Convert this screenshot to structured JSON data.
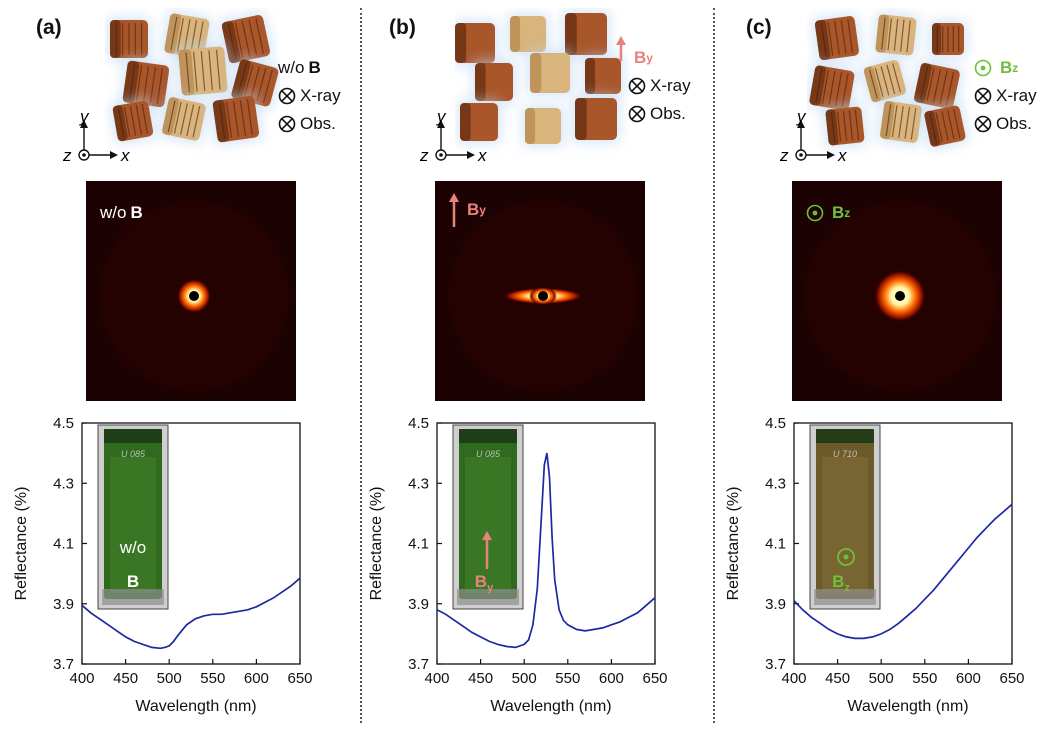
{
  "panels": [
    {
      "label": "(a)",
      "field_text": "w/o",
      "field_sym": "B",
      "field_sub": "",
      "field_color": "#111111",
      "field_marker": "none",
      "legend_rows": [
        "X-ray",
        "Obs."
      ],
      "axes": {
        "y": "y",
        "z": "z",
        "x": "x"
      },
      "saxs_text": "w/o",
      "saxs_sym": "B",
      "saxs_sub": "",
      "saxs_color": "#ffffff",
      "saxs_pattern": "small-ring",
      "vial_text_line1": "w/o",
      "vial_text_line2": "B",
      "vial_sub": "",
      "vial_text_color": "#ffffff",
      "vial_marker": "none",
      "vial_tint": "green"
    },
    {
      "label": "(b)",
      "field_text": "",
      "field_sym": "B",
      "field_sub": "y",
      "field_color": "#e8827a",
      "field_marker": "arrow-up",
      "legend_rows": [
        "X-ray",
        "Obs."
      ],
      "axes": {
        "y": "y",
        "z": "z",
        "x": "x"
      },
      "saxs_text": "",
      "saxs_sym": "B",
      "saxs_sub": "y",
      "saxs_color": "#e8827a",
      "saxs_pattern": "streak",
      "vial_text_line1": "",
      "vial_text_line2": "B",
      "vial_sub": "y",
      "vial_text_color": "#e8827a",
      "vial_marker": "arrow-up",
      "vial_tint": "green"
    },
    {
      "label": "(c)",
      "field_text": "",
      "field_sym": "B",
      "field_sub": "z",
      "field_color": "#6fbf3a",
      "field_marker": "odot",
      "legend_rows": [
        "X-ray",
        "Obs."
      ],
      "axes": {
        "y": "y",
        "z": "z",
        "x": "x"
      },
      "saxs_text": "",
      "saxs_sym": "B",
      "saxs_sub": "z",
      "saxs_color": "#6fbf3a",
      "saxs_pattern": "large-ring",
      "vial_text_line1": "",
      "vial_text_line2": "B",
      "vial_sub": "z",
      "vial_text_color": "#6fbf3a",
      "vial_marker": "odot",
      "vial_tint": "amber"
    }
  ],
  "vial_labels": [
    "U 085",
    "U 085",
    "U 710"
  ],
  "chart_data": [
    {
      "type": "line",
      "xlabel": "Wavelength (nm)",
      "ylabel": "Reflectance (%)",
      "xlim": [
        400,
        650
      ],
      "ylim": [
        3.7,
        4.5
      ],
      "xticks": [
        400,
        450,
        500,
        550,
        600,
        650
      ],
      "yticks": [
        3.7,
        3.9,
        4.1,
        4.3,
        4.5
      ],
      "line_color": "#1a2aa0",
      "series": [
        {
          "x": [
            400,
            410,
            420,
            430,
            440,
            450,
            460,
            470,
            480,
            490,
            495,
            500,
            505,
            510,
            520,
            530,
            540,
            550,
            560,
            570,
            580,
            590,
            600,
            610,
            620,
            630,
            640,
            650
          ],
          "y": [
            3.895,
            3.87,
            3.85,
            3.83,
            3.81,
            3.79,
            3.775,
            3.765,
            3.755,
            3.752,
            3.755,
            3.76,
            3.775,
            3.795,
            3.83,
            3.85,
            3.86,
            3.865,
            3.865,
            3.87,
            3.875,
            3.88,
            3.89,
            3.905,
            3.92,
            3.94,
            3.96,
            3.985
          ]
        }
      ]
    },
    {
      "type": "line",
      "xlabel": "Wavelength (nm)",
      "ylabel": "Reflectance (%)",
      "xlim": [
        400,
        650
      ],
      "ylim": [
        3.7,
        4.5
      ],
      "xticks": [
        400,
        450,
        500,
        550,
        600,
        650
      ],
      "yticks": [
        3.7,
        3.9,
        4.1,
        4.3,
        4.5
      ],
      "line_color": "#1a2aa0",
      "series": [
        {
          "x": [
            400,
            410,
            420,
            430,
            440,
            450,
            460,
            470,
            480,
            490,
            500,
            505,
            510,
            515,
            520,
            523,
            526,
            529,
            532,
            535,
            540,
            545,
            550,
            560,
            570,
            580,
            590,
            600,
            610,
            620,
            630,
            640,
            650
          ],
          "y": [
            3.88,
            3.865,
            3.845,
            3.825,
            3.805,
            3.79,
            3.775,
            3.765,
            3.758,
            3.755,
            3.765,
            3.78,
            3.83,
            3.95,
            4.2,
            4.36,
            4.4,
            4.32,
            4.12,
            3.98,
            3.88,
            3.845,
            3.83,
            3.815,
            3.81,
            3.815,
            3.82,
            3.83,
            3.84,
            3.855,
            3.87,
            3.895,
            3.92
          ]
        }
      ]
    },
    {
      "type": "line",
      "xlabel": "Wavelength (nm)",
      "ylabel": "Reflectance (%)",
      "xlim": [
        400,
        650
      ],
      "ylim": [
        3.7,
        4.5
      ],
      "xticks": [
        400,
        450,
        500,
        550,
        600,
        650
      ],
      "yticks": [
        3.7,
        3.9,
        4.1,
        4.3,
        4.5
      ],
      "line_color": "#1a2aa0",
      "series": [
        {
          "x": [
            400,
            410,
            420,
            430,
            440,
            450,
            460,
            470,
            480,
            490,
            500,
            510,
            520,
            530,
            540,
            550,
            560,
            570,
            580,
            590,
            600,
            610,
            620,
            630,
            640,
            650
          ],
          "y": [
            3.91,
            3.88,
            3.855,
            3.835,
            3.815,
            3.8,
            3.79,
            3.785,
            3.785,
            3.79,
            3.8,
            3.815,
            3.835,
            3.86,
            3.885,
            3.915,
            3.945,
            3.98,
            4.015,
            4.05,
            4.085,
            4.12,
            4.15,
            4.18,
            4.205,
            4.23
          ]
        }
      ]
    }
  ]
}
